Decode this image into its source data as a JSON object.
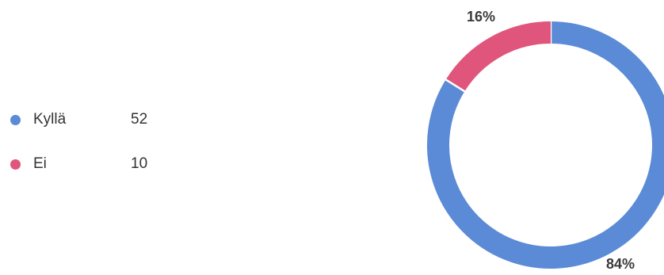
{
  "chart_data": {
    "type": "pie",
    "donut": true,
    "legend_position": "left",
    "slices": [
      {
        "label": "Kyllä",
        "value": 52,
        "percent_label": "84%",
        "color": "#5b8bd6"
      },
      {
        "label": "Ei",
        "value": 10,
        "percent_label": "16%",
        "color": "#e0557b"
      }
    ]
  }
}
